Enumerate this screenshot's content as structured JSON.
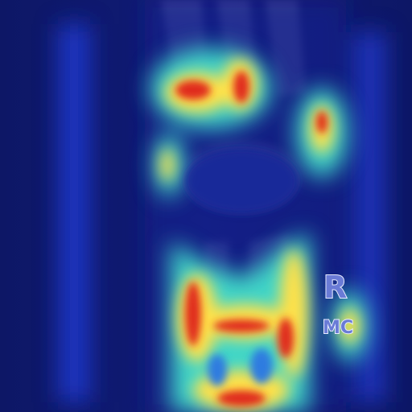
{
  "image": {
    "kind": "x-ray heatmap overlay",
    "colormap": "jet",
    "palette": {
      "background": "#0f1a6e",
      "cool": "#1a2fb0",
      "mid": "#3fd6c8",
      "warm": "#ffe14a",
      "hot": "#e02a1a",
      "marker_fill": "#6a7bd6",
      "marker_outline": "#e8ecff"
    }
  },
  "markers": {
    "side": "R",
    "view": "MC"
  }
}
